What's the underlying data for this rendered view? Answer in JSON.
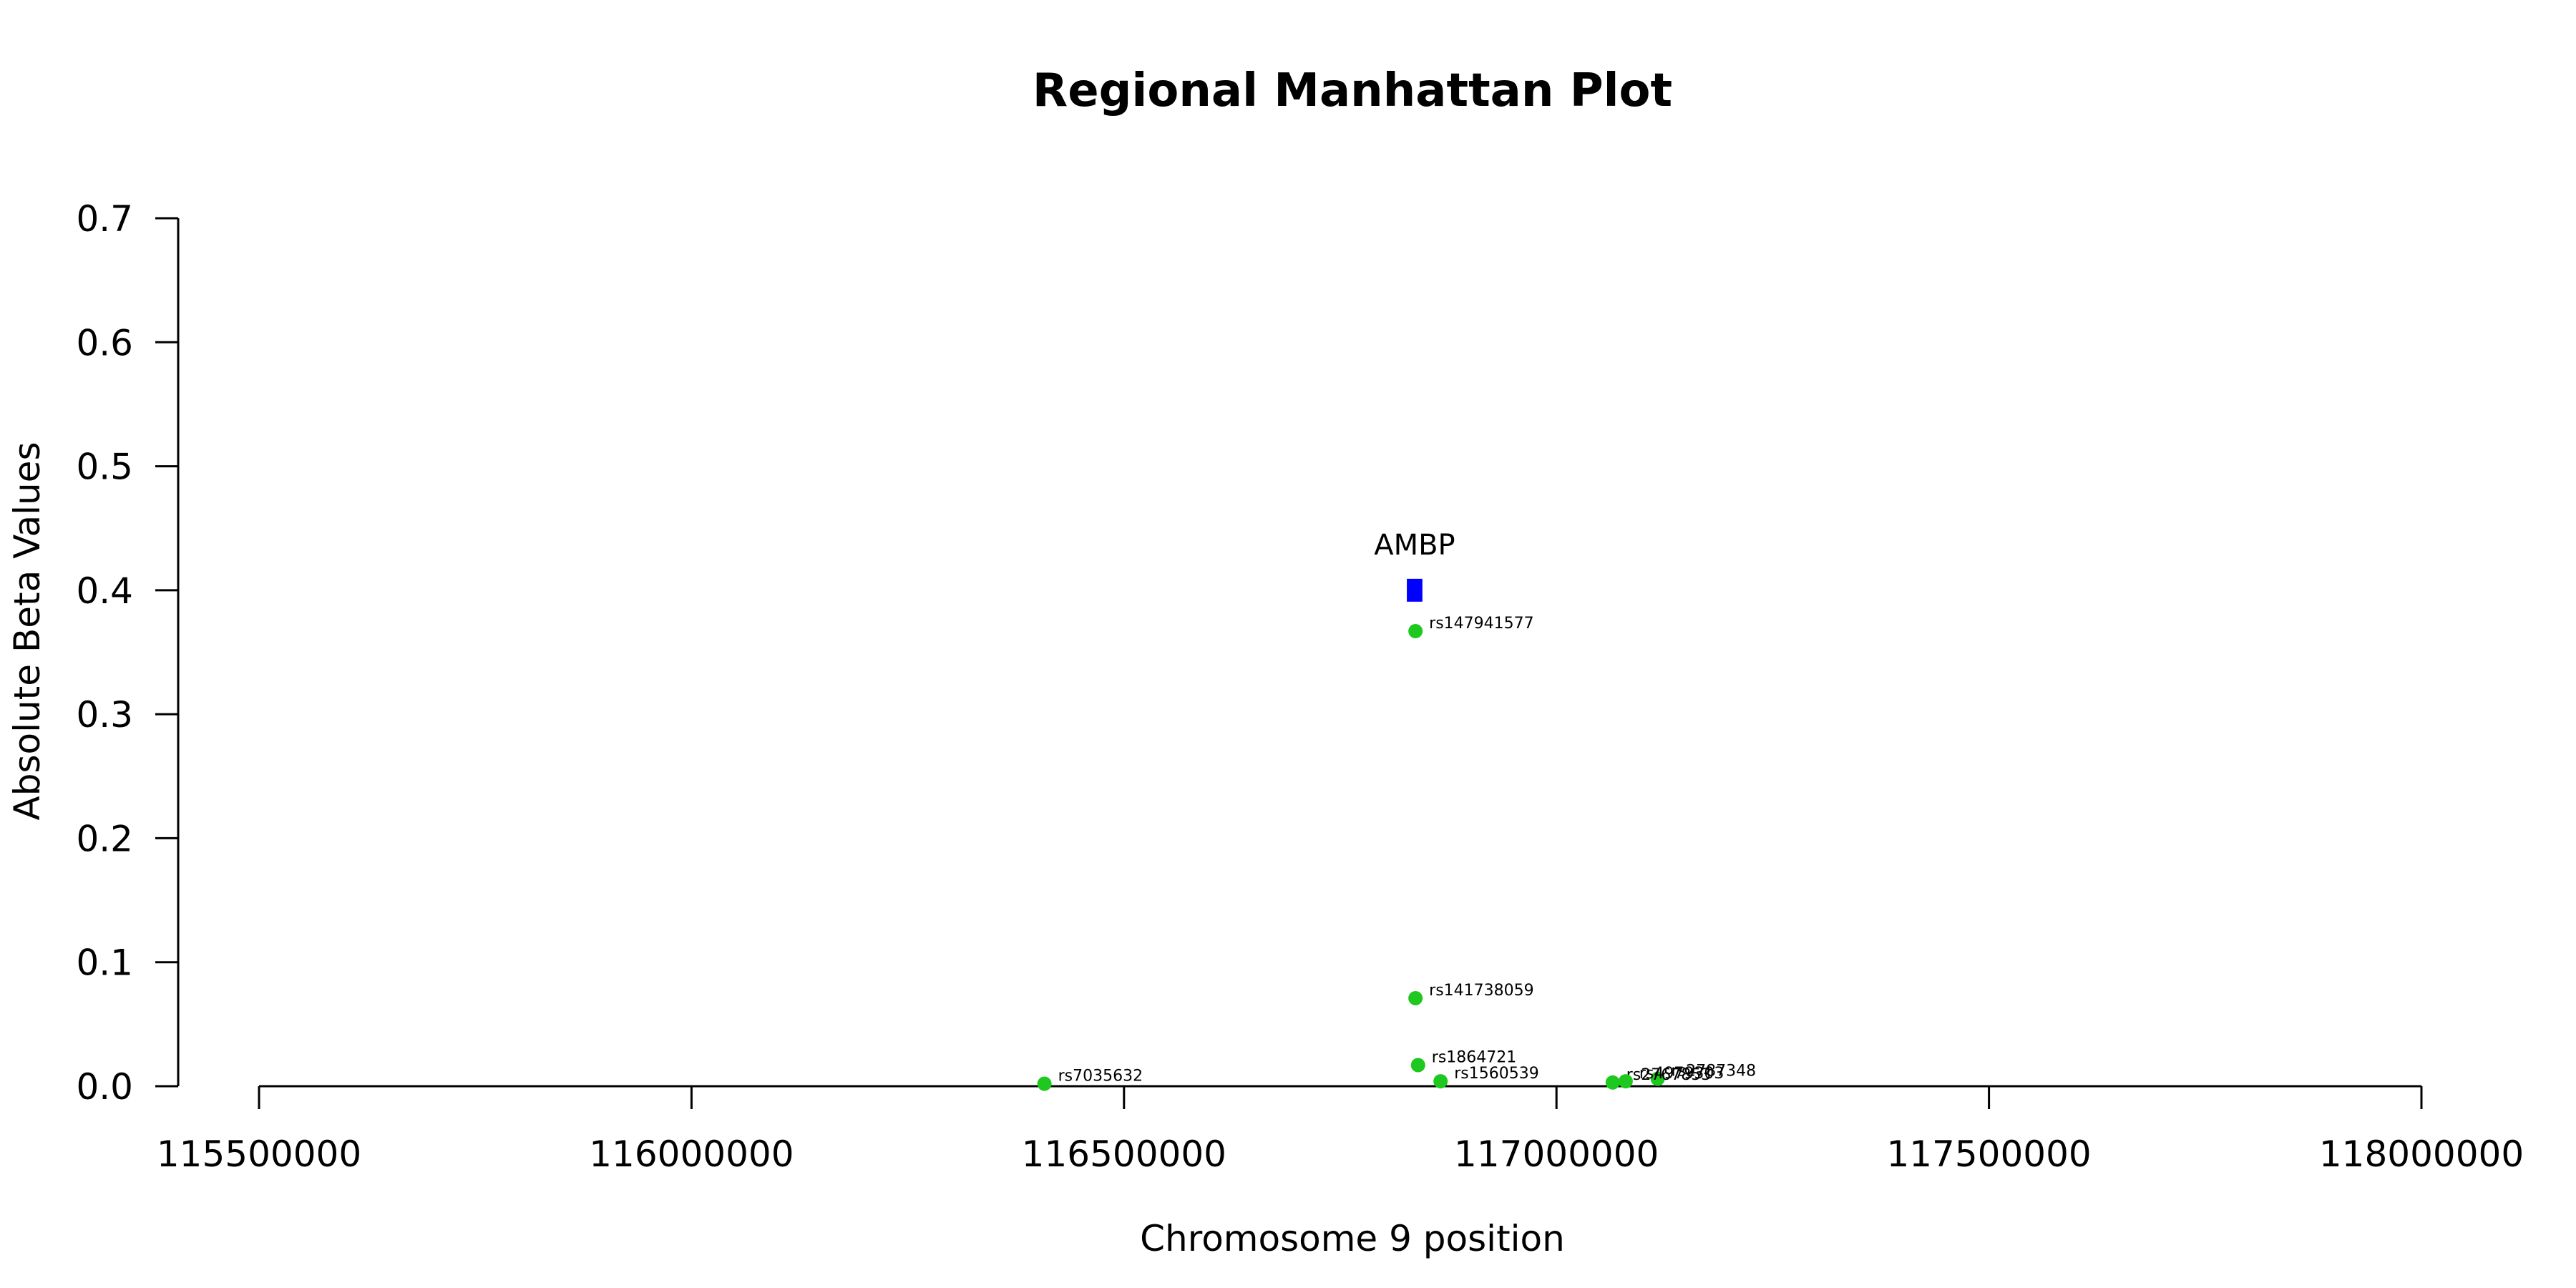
{
  "chart_data": {
    "type": "scatter",
    "title": "Regional Manhattan Plot",
    "xlabel": "Chromosome 9 position",
    "ylabel": "Absolute Beta Values",
    "xlim": [
      115500000,
      118000000
    ],
    "ylim": [
      0.0,
      0.7
    ],
    "x_ticks": [
      115500000,
      116000000,
      116500000,
      117000000,
      117500000,
      118000000
    ],
    "x_tick_labels": [
      "115500000",
      "116000000",
      "116500000",
      "117000000",
      "117500000",
      "118000000"
    ],
    "y_ticks": [
      0.0,
      0.1,
      0.2,
      0.3,
      0.4,
      0.5,
      0.6,
      0.7
    ],
    "y_tick_labels": [
      "0.0",
      "0.1",
      "0.2",
      "0.3",
      "0.4",
      "0.5",
      "0.6",
      "0.7"
    ],
    "grid": false,
    "point_color": "#1ec81e",
    "gene_color": "#0000ff",
    "points": [
      {
        "label": "rs147941577",
        "x": 116837000,
        "y": 0.367
      },
      {
        "label": "rs141738059",
        "x": 116837000,
        "y": 0.071
      },
      {
        "label": "rs1864721",
        "x": 116840000,
        "y": 0.017
      },
      {
        "label": "rs1560539",
        "x": 116866000,
        "y": 0.004
      },
      {
        "label": "rs7035632",
        "x": 116408000,
        "y": 0.002
      },
      {
        "label": "rs2787348",
        "x": 117117000,
        "y": 0.006
      },
      {
        "label": "rs2767853",
        "x": 117065000,
        "y": 0.003
      },
      {
        "label": "rs4979303",
        "x": 117080000,
        "y": 0.004
      }
    ],
    "genes": [
      {
        "name": "AMBP",
        "x_start": 116827000,
        "x_end": 116845000,
        "y": 0.4
      }
    ]
  }
}
